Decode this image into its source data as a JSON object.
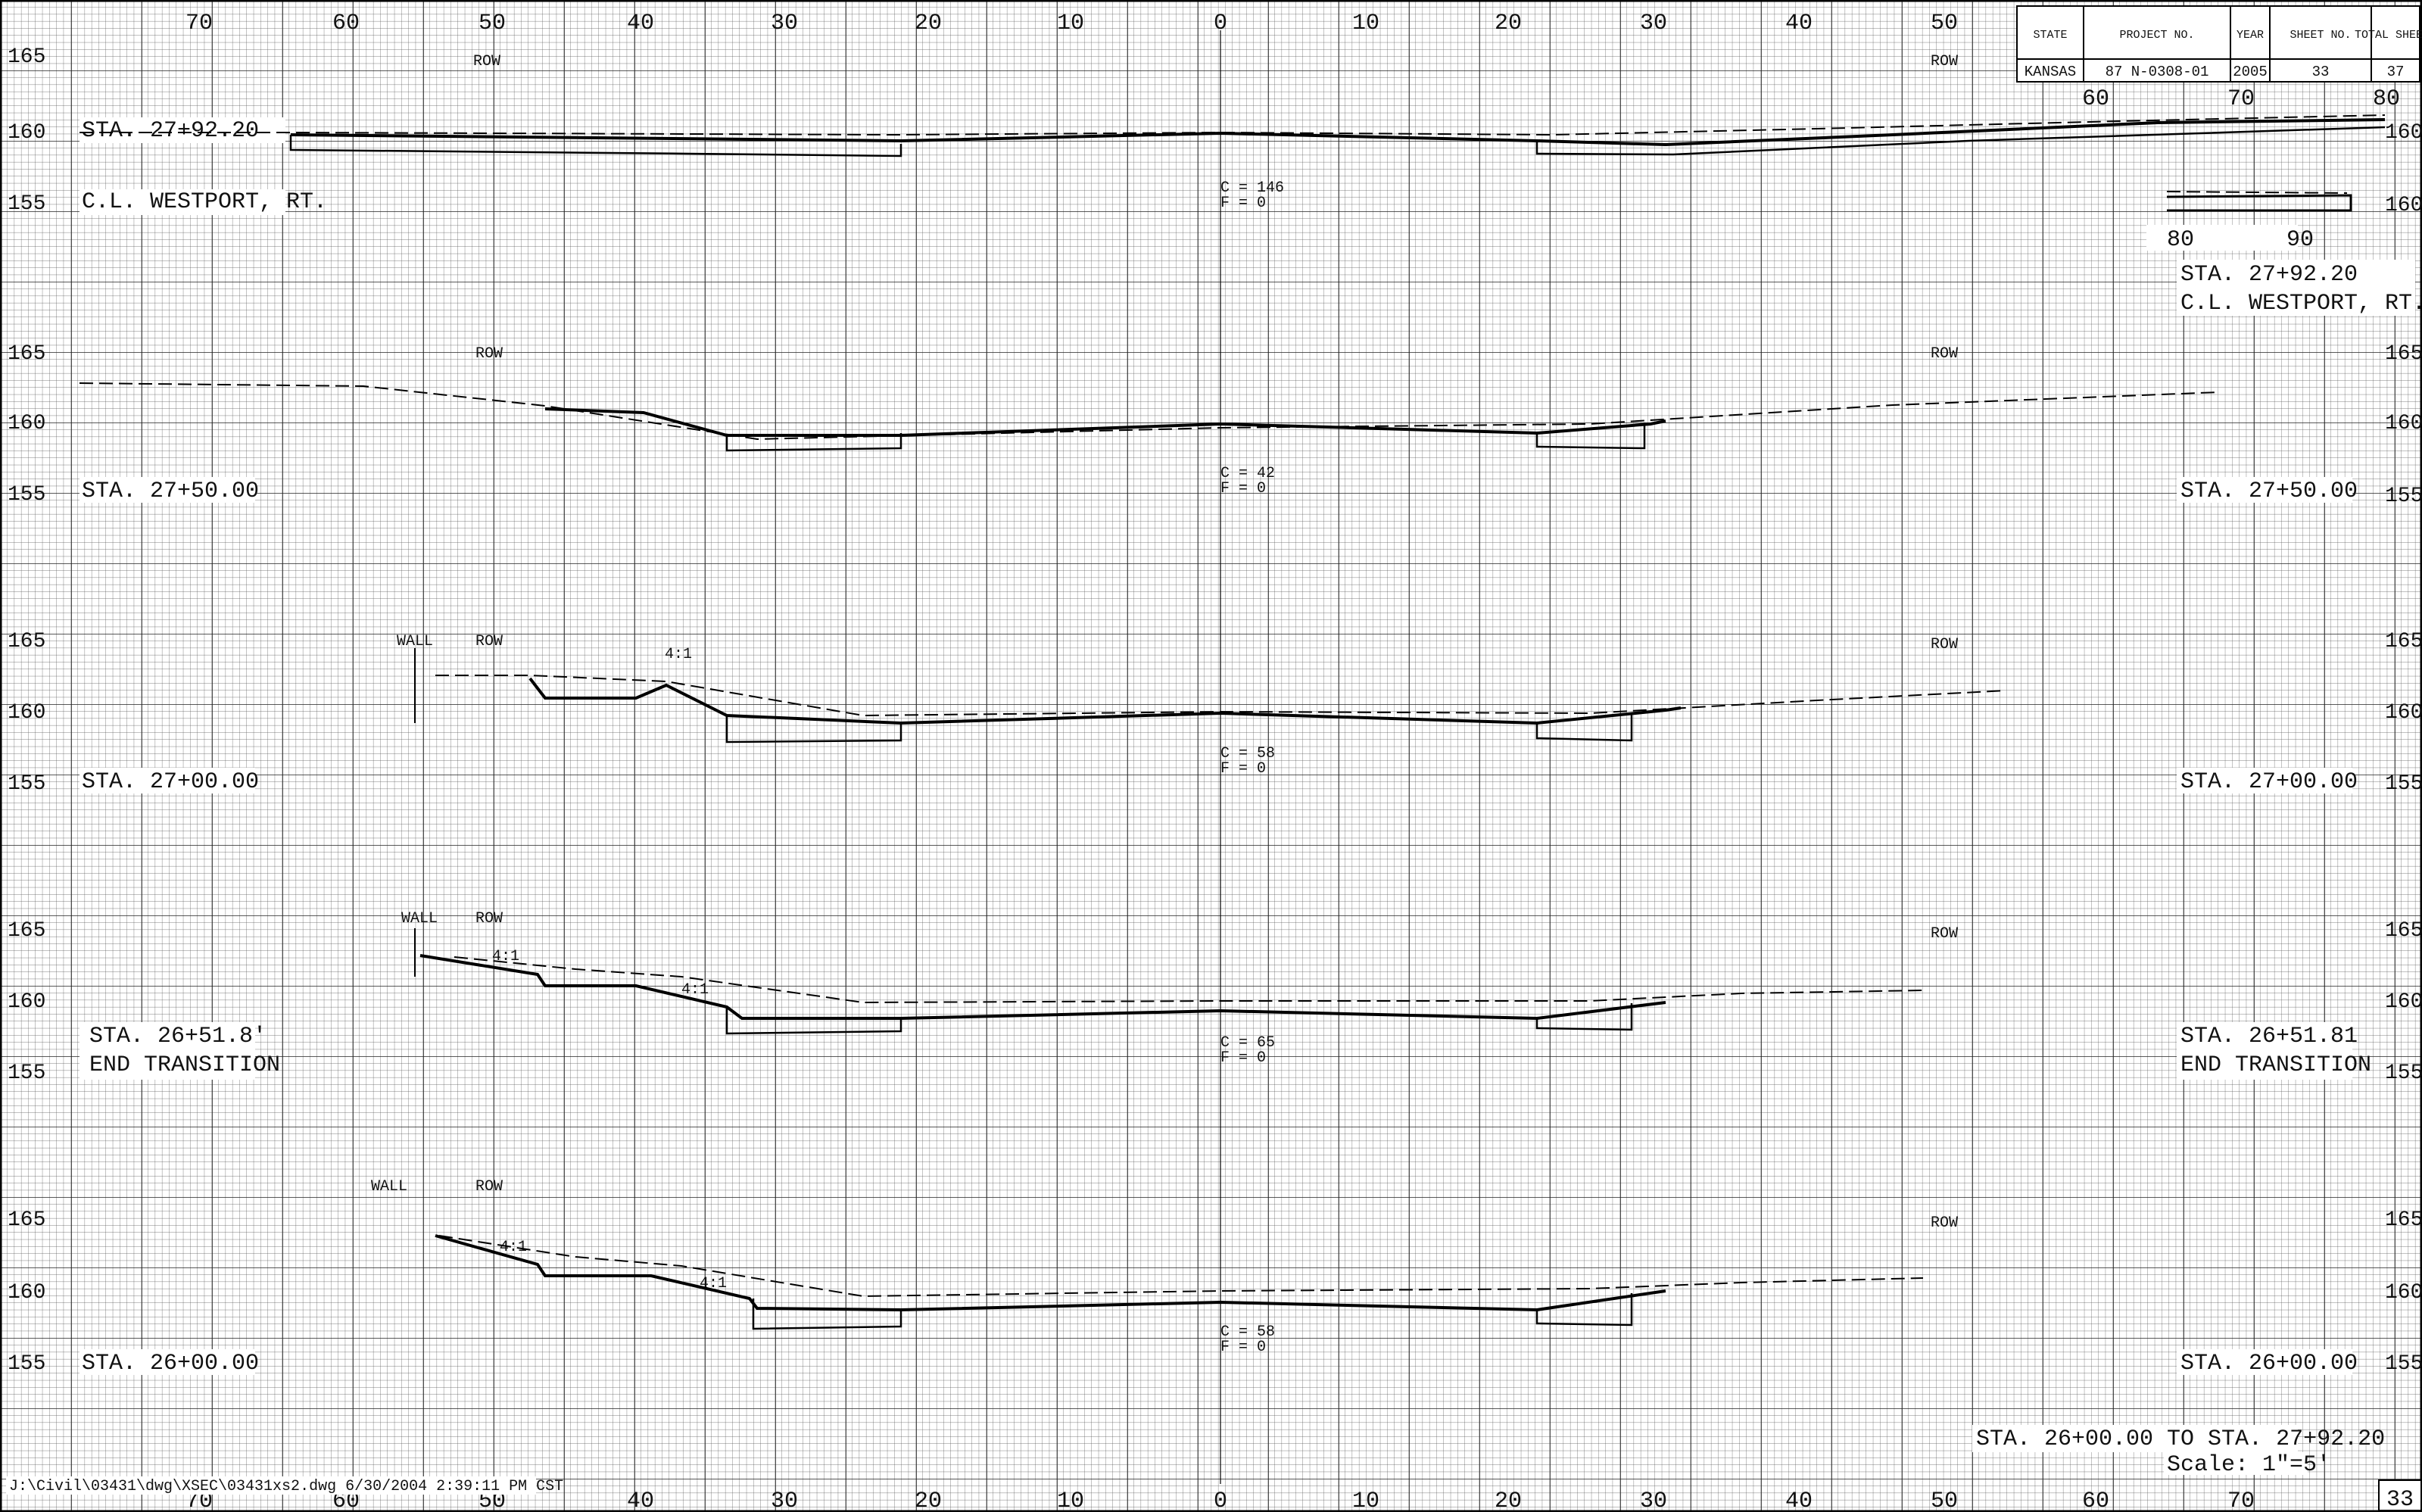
{
  "title_block": {
    "headers": [
      "STATE",
      "PROJECT NO.",
      "YEAR",
      "SHEET NO.",
      "TOTAL SHEETS"
    ],
    "values": [
      "KANSAS",
      "87 N-0308-01",
      "2005",
      "33",
      "37"
    ]
  },
  "axis": {
    "top_ticks": [
      "70",
      "60",
      "50",
      "40",
      "30",
      "20",
      "10",
      "0",
      "10",
      "20",
      "30",
      "40",
      "50"
    ],
    "bottom_ticks": [
      "70",
      "60",
      "50",
      "40",
      "30",
      "20",
      "10",
      "0",
      "10",
      "20",
      "30",
      "40",
      "50",
      "60",
      "70"
    ],
    "extension_ticks_top": [
      "60",
      "70",
      "80"
    ],
    "inset_ticks": [
      "80",
      "90"
    ],
    "elevations": [
      "165",
      "160",
      "155"
    ]
  },
  "sections": [
    {
      "station": "STA. 27+92.20",
      "note": "C.L. WESTPORT, RT.",
      "cut": "C = 146",
      "fill": "F = 0",
      "row_left": "ROW",
      "row_right": "ROW",
      "wall": "",
      "slopes": []
    },
    {
      "station": "STA. 27+50.00",
      "note": "",
      "cut": "C = 42",
      "fill": "F = 0",
      "row_left": "ROW",
      "row_right": "ROW",
      "wall": "",
      "slopes": []
    },
    {
      "station": "STA. 27+00.00",
      "note": "",
      "cut": "C = 58",
      "fill": "F = 0",
      "row_left": "ROW",
      "row_right": "ROW",
      "wall": "WALL",
      "slopes": [
        "4:1"
      ]
    },
    {
      "station": "STA. 26+51.81",
      "note": "END TRANSITION",
      "cut": "C = 65",
      "fill": "F = 0",
      "row_left": "ROW",
      "row_right": "ROW",
      "wall": "WALL",
      "slopes": [
        "4:1",
        "4:1"
      ]
    },
    {
      "station": "STA. 26+00.00",
      "note": "",
      "cut": "C = 58",
      "fill": "F = 0",
      "row_left": "ROW",
      "row_right": "ROW",
      "wall": "WALL",
      "slopes": [
        "4:1",
        "4:1"
      ]
    }
  ],
  "left_labels": {
    "s1_station": "STA. 27+92.20",
    "s1_note": "C.L. WESTPORT, RT.",
    "s4_station": "STA. 26+51.8'",
    "s4_note": "END TRANSITION"
  },
  "footer": {
    "range": "STA. 26+00.00 TO STA. 27+92.20",
    "scale": "Scale: 1\"=5'",
    "file_path": "J:\\Civil\\03431\\dwg\\XSEC\\03431xs2.dwg   6/30/2004   2:39:11 PM CST",
    "sheet_number": "33"
  }
}
